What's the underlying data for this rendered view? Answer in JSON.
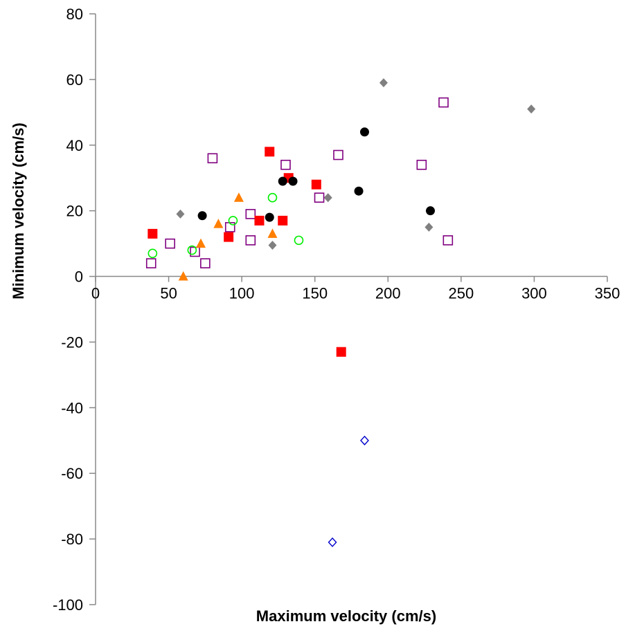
{
  "chart_data": {
    "type": "scatter",
    "title": "",
    "xlabel": "Maximum velocity (cm/s)",
    "ylabel": "Minimum velocity (cm/s)",
    "xlim": [
      0,
      350
    ],
    "ylim": [
      -100,
      80
    ],
    "x_ticks": [
      0,
      50,
      100,
      150,
      200,
      250,
      300,
      350
    ],
    "y_ticks": [
      -100,
      -80,
      -60,
      -40,
      -20,
      0,
      20,
      40,
      60,
      80
    ],
    "x_tick_labels": [
      "0",
      "50",
      "100",
      "150",
      "200",
      "250",
      "300",
      "350"
    ],
    "y_tick_labels": [
      "-100",
      "-80",
      "-60",
      "-40",
      "-20",
      "0",
      "20",
      "40",
      "60",
      "80"
    ],
    "grid": false,
    "legend": "none",
    "series": [
      {
        "marker": "diamond-filled",
        "color": "#808080",
        "points": [
          [
            58,
            19
          ],
          [
            121,
            9.5
          ],
          [
            159,
            24
          ],
          [
            197,
            59
          ],
          [
            228,
            15
          ],
          [
            298,
            51
          ]
        ]
      },
      {
        "marker": "square-open",
        "color": "#800080",
        "points": [
          [
            38,
            4
          ],
          [
            51,
            10
          ],
          [
            68,
            7.5
          ],
          [
            75,
            4
          ],
          [
            80,
            36
          ],
          [
            92,
            15
          ],
          [
            106,
            11
          ],
          [
            106,
            19
          ],
          [
            130,
            34
          ],
          [
            153,
            24
          ],
          [
            166,
            37
          ],
          [
            223,
            34
          ],
          [
            238,
            53
          ],
          [
            241,
            11
          ]
        ]
      },
      {
        "marker": "square-filled",
        "color": "#ff0000",
        "points": [
          [
            39,
            13
          ],
          [
            91,
            12
          ],
          [
            112,
            17
          ],
          [
            119,
            38
          ],
          [
            128,
            17
          ],
          [
            132,
            30
          ],
          [
            151,
            28
          ],
          [
            168,
            -23
          ]
        ]
      },
      {
        "marker": "triangle-filled",
        "color": "#ff7f00",
        "points": [
          [
            60,
            0
          ],
          [
            72,
            10
          ],
          [
            84,
            16
          ],
          [
            98,
            24
          ],
          [
            121,
            13
          ]
        ]
      },
      {
        "marker": "circle-open",
        "color": "#00ee00",
        "points": [
          [
            39,
            7
          ],
          [
            66,
            8
          ],
          [
            94,
            17
          ],
          [
            121,
            24
          ],
          [
            139,
            11
          ]
        ]
      },
      {
        "marker": "circle-filled",
        "color": "#000000",
        "points": [
          [
            73,
            18.5
          ],
          [
            119,
            18
          ],
          [
            128,
            29
          ],
          [
            135,
            29
          ],
          [
            180,
            26
          ],
          [
            184,
            44
          ],
          [
            229,
            20
          ]
        ]
      },
      {
        "marker": "diamond-open",
        "color": "#0000cc",
        "points": [
          [
            162,
            -81
          ],
          [
            184,
            -50
          ]
        ]
      }
    ]
  }
}
